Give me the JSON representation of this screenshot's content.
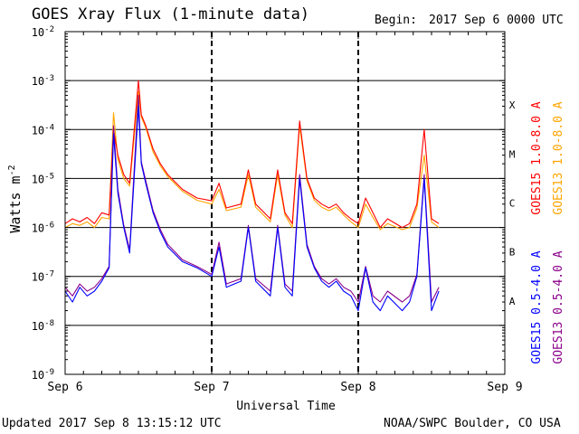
{
  "header": {
    "title": "GOES Xray Flux (1-minute data)",
    "begin_label": "Begin:",
    "begin_value": "2017 Sep 6 0000 UTC"
  },
  "footer": {
    "updated": "Updated 2017 Sep  8 13:15:12 UTC",
    "credit": "NOAA/SWPC Boulder, CO USA"
  },
  "colors": {
    "goes15_long": "#ff0000",
    "goes13_long": "#ffa500",
    "goes15_short": "#0000ff",
    "goes13_short": "#8b008b"
  },
  "chart_data": {
    "type": "line",
    "title": "GOES Xray Flux (1-minute data)",
    "xlabel": "Universal Time",
    "ylabel": "Watts m",
    "ylabel_sup": "-2",
    "xlim": [
      0,
      3
    ],
    "x_unit": "days since 2017 Sep 6 0000 UTC",
    "x_ticks": [
      {
        "x": 0,
        "label": "Sep 6"
      },
      {
        "x": 1,
        "label": "Sep 7"
      },
      {
        "x": 2,
        "label": "Sep 8"
      },
      {
        "x": 3,
        "label": "Sep 9"
      }
    ],
    "ylim": [
      1e-09,
      0.01
    ],
    "y_scale": "log",
    "y_ticks": [
      {
        "v": 1e-09,
        "base": "10",
        "exp": "-9"
      },
      {
        "v": 1e-08,
        "base": "10",
        "exp": "-8"
      },
      {
        "v": 1e-07,
        "base": "10",
        "exp": "-7"
      },
      {
        "v": 1e-06,
        "base": "10",
        "exp": "-6"
      },
      {
        "v": 1e-05,
        "base": "10",
        "exp": "-5"
      },
      {
        "v": 0.0001,
        "base": "10",
        "exp": "-4"
      },
      {
        "v": 0.001,
        "base": "10",
        "exp": "-3"
      },
      {
        "v": 0.01,
        "base": "10",
        "exp": "-2"
      }
    ],
    "flare_classes": [
      {
        "label": "X",
        "v": 0.000316
      },
      {
        "label": "M",
        "v": 3.16e-05
      },
      {
        "label": "C",
        "v": 3.16e-06
      },
      {
        "label": "B",
        "v": 3.16e-07
      },
      {
        "label": "A",
        "v": 3.16e-08
      }
    ],
    "grid": "horizontal at each decade 1e-8 to 1e-3; vertical dashed at day boundaries",
    "legend_position": "right, vertical",
    "series": [
      {
        "name": "GOES15 1.0-8.0 A",
        "color": "#ff0000",
        "x": [
          0,
          0.05,
          0.1,
          0.15,
          0.2,
          0.25,
          0.3,
          0.33,
          0.36,
          0.4,
          0.44,
          0.5,
          0.52,
          0.55,
          0.6,
          0.65,
          0.7,
          0.8,
          0.9,
          1.0,
          1.05,
          1.1,
          1.2,
          1.25,
          1.3,
          1.4,
          1.45,
          1.5,
          1.55,
          1.6,
          1.65,
          1.7,
          1.75,
          1.8,
          1.85,
          1.9,
          1.95,
          2.0,
          2.05,
          2.1,
          2.15,
          2.2,
          2.3,
          2.35,
          2.4,
          2.45,
          2.5,
          2.55
        ],
        "y": [
          1.2e-06,
          1.5e-06,
          1.3e-06,
          1.6e-06,
          1.2e-06,
          2e-06,
          1.8e-06,
          0.0001,
          3e-05,
          1.2e-05,
          8e-06,
          0.001,
          0.0002,
          0.00012,
          4e-05,
          2e-05,
          1.2e-05,
          6e-06,
          4e-06,
          3.5e-06,
          8e-06,
          2.5e-06,
          3e-06,
          1.5e-05,
          3e-06,
          1.5e-06,
          1.5e-05,
          2e-06,
          1.2e-06,
          0.00015,
          1e-05,
          4e-06,
          3e-06,
          2.5e-06,
          3e-06,
          2e-06,
          1.5e-06,
          1.2e-06,
          4e-06,
          2e-06,
          1e-06,
          1.5e-06,
          1e-06,
          1.2e-06,
          3e-06,
          0.0001,
          1.5e-06,
          1.2e-06
        ]
      },
      {
        "name": "GOES13 1.0-8.0 A",
        "color": "#ffa500",
        "x": [
          0,
          0.05,
          0.1,
          0.15,
          0.2,
          0.25,
          0.3,
          0.33,
          0.36,
          0.4,
          0.44,
          0.5,
          0.52,
          0.55,
          0.6,
          0.65,
          0.7,
          0.8,
          0.9,
          1.0,
          1.05,
          1.1,
          1.2,
          1.25,
          1.3,
          1.4,
          1.45,
          1.5,
          1.55,
          1.6,
          1.65,
          1.7,
          1.75,
          1.8,
          1.85,
          1.9,
          1.95,
          2.0,
          2.05,
          2.1,
          2.15,
          2.2,
          2.3,
          2.35,
          2.4,
          2.45,
          2.5,
          2.55
        ],
        "y": [
          1e-06,
          1.2e-06,
          1.1e-06,
          1.3e-06,
          1e-06,
          1.6e-06,
          1.5e-06,
          0.00022,
          2.5e-05,
          1e-05,
          7e-06,
          0.0006,
          0.00018,
          0.00011,
          3.5e-05,
          1.8e-05,
          1.1e-05,
          5.5e-06,
          3.6e-06,
          3e-06,
          6e-06,
          2.2e-06,
          2.6e-06,
          1.2e-05,
          2.6e-06,
          1.3e-06,
          1.2e-05,
          1.8e-06,
          1e-06,
          0.00012,
          9e-06,
          3.6e-06,
          2.6e-06,
          2.2e-06,
          2.6e-06,
          1.8e-06,
          1.3e-06,
          1e-06,
          3e-06,
          1.6e-06,
          9e-07,
          1.2e-06,
          9e-07,
          1e-06,
          2.5e-06,
          3e-05,
          1.3e-06,
          1e-06
        ]
      },
      {
        "name": "GOES15 0.5-4.0 A",
        "color": "#0000ff",
        "x": [
          0,
          0.05,
          0.1,
          0.15,
          0.2,
          0.25,
          0.3,
          0.33,
          0.36,
          0.4,
          0.44,
          0.5,
          0.52,
          0.55,
          0.6,
          0.65,
          0.7,
          0.8,
          0.9,
          1.0,
          1.05,
          1.1,
          1.2,
          1.25,
          1.3,
          1.4,
          1.45,
          1.5,
          1.55,
          1.6,
          1.65,
          1.7,
          1.75,
          1.8,
          1.85,
          1.9,
          1.95,
          2.0,
          2.05,
          2.1,
          2.15,
          2.2,
          2.3,
          2.35,
          2.4,
          2.45,
          2.5,
          2.55
        ],
        "y": [
          5e-08,
          3e-08,
          6e-08,
          4e-08,
          5e-08,
          8e-08,
          1.5e-07,
          8e-05,
          5e-06,
          1e-06,
          3e-07,
          0.0003,
          2e-05,
          8e-06,
          2e-06,
          8e-07,
          4e-07,
          2e-07,
          1.5e-07,
          1e-07,
          4e-07,
          6e-08,
          8e-08,
          1e-06,
          8e-08,
          4e-08,
          1e-06,
          6e-08,
          4e-08,
          1e-05,
          4e-07,
          1.5e-07,
          8e-08,
          6e-08,
          8e-08,
          5e-08,
          4e-08,
          2e-08,
          1.5e-07,
          3e-08,
          2e-08,
          4e-08,
          2e-08,
          3e-08,
          1e-07,
          1e-05,
          2e-08,
          5e-08
        ]
      },
      {
        "name": "GOES13 0.5-4.0 A",
        "color": "#8b008b",
        "x": [
          0,
          0.05,
          0.1,
          0.15,
          0.2,
          0.25,
          0.3,
          0.33,
          0.36,
          0.4,
          0.44,
          0.5,
          0.52,
          0.55,
          0.6,
          0.65,
          0.7,
          0.8,
          0.9,
          1.0,
          1.05,
          1.1,
          1.2,
          1.25,
          1.3,
          1.4,
          1.45,
          1.5,
          1.55,
          1.6,
          1.65,
          1.7,
          1.75,
          1.8,
          1.85,
          1.9,
          1.95,
          2.0,
          2.05,
          2.1,
          2.15,
          2.2,
          2.3,
          2.35,
          2.4,
          2.45,
          2.5,
          2.55
        ],
        "y": [
          6e-08,
          4e-08,
          7e-08,
          5e-08,
          6e-08,
          9e-08,
          1.6e-07,
          0.00012,
          6e-06,
          1.1e-06,
          3.5e-07,
          0.0005,
          2.2e-05,
          9e-06,
          2.2e-06,
          9e-07,
          4.5e-07,
          2.2e-07,
          1.6e-07,
          1.1e-07,
          5e-07,
          7e-08,
          9e-08,
          1.1e-06,
          9e-08,
          5e-08,
          1.1e-06,
          7e-08,
          5e-08,
          1.2e-05,
          4.5e-07,
          1.6e-07,
          9e-08,
          7e-08,
          9e-08,
          6e-08,
          5e-08,
          3e-08,
          1.6e-07,
          4e-08,
          3e-08,
          5e-08,
          3e-08,
          4e-08,
          1.1e-07,
          1.2e-05,
          3e-08,
          6e-08
        ]
      }
    ]
  }
}
